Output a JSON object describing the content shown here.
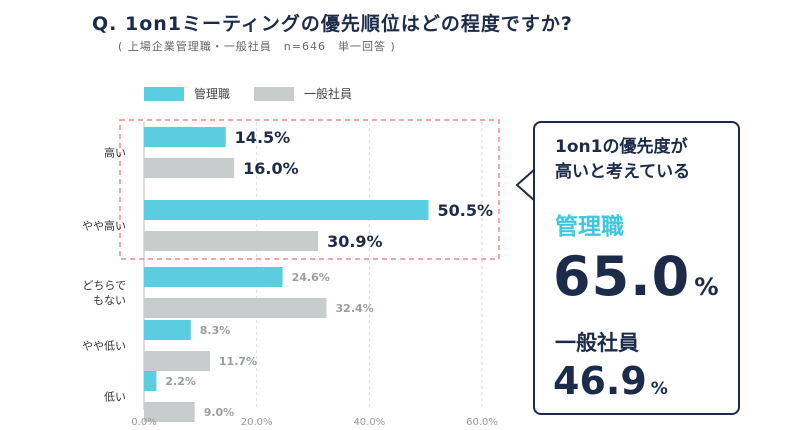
{
  "question": "Q. 1on1ミーティングの優先順位はどの程度ですか?",
  "subtitle": "( 上場企業管理職・一般社員　n=646　単一回答 )",
  "colors": {
    "manager": "#5bcde0",
    "employee": "#c8cccd",
    "highlight": "#f08a8a",
    "navy": "#1d2b4a"
  },
  "chart_data": {
    "type": "bar",
    "orientation": "horizontal",
    "categories": [
      "高い",
      "やや高い",
      "どちらでもない",
      "やや低い",
      "低い"
    ],
    "category_lines": [
      [
        "高い"
      ],
      [
        "やや高い"
      ],
      [
        "どちらで",
        "もない"
      ],
      [
        "やや低い"
      ],
      [
        "低い"
      ]
    ],
    "series": [
      {
        "name": "管理職",
        "values": [
          14.5,
          50.5,
          24.6,
          8.3,
          2.2
        ],
        "labels": [
          "14.5%",
          "50.5%",
          "24.6%",
          "8.3%",
          "2.2%"
        ]
      },
      {
        "name": "一般社員",
        "values": [
          16.0,
          30.9,
          32.4,
          11.7,
          9.0
        ],
        "labels": [
          "16.0%",
          "30.9%",
          "32.4%",
          "11.7%",
          "9.0%"
        ]
      }
    ],
    "xlim": [
      0,
      60
    ],
    "ticks": [
      "0.0%",
      "20.0%",
      "40.0%",
      "60.0%"
    ],
    "tick_values": [
      0,
      20,
      40,
      60
    ],
    "highlighted_categories": [
      "高い",
      "やや高い"
    ],
    "legend_position": "top-left"
  },
  "callout": {
    "heading_line1": "1on1の優先度が",
    "heading_line2": "高いと考えている",
    "manager_label": "管理職",
    "manager_value": "65.0",
    "employee_label": "一般社員",
    "employee_value": "46.9",
    "percent_sign": "%"
  }
}
